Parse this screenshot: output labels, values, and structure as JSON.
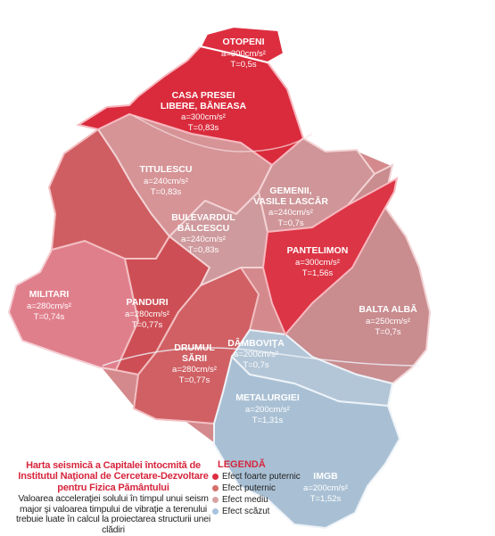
{
  "colors": {
    "very_strong": "#dd2e3f",
    "strong": "#cf5a5c",
    "medium": "#cd9294",
    "low": "#a7bfd3",
    "west": "#e3788a",
    "accent": "#d7263d"
  },
  "zones": [
    {
      "id": "otopeni",
      "name": "OTOPENI",
      "lines": [
        "a=300cm/s²",
        "T=0,5s"
      ],
      "effect": "very_strong"
    },
    {
      "id": "casa-presei",
      "name": "CASA PRESEI",
      "name2": "LIBERE, BĂNEASA",
      "lines": [
        "a=300cm/s²",
        "T=0,83s"
      ],
      "effect": "very_strong"
    },
    {
      "id": "titulescu",
      "name": "TITULESCU",
      "lines": [
        "a=240cm/s²",
        "T=0,83s"
      ],
      "effect": "medium"
    },
    {
      "id": "gemenii",
      "name": "GEMENII,",
      "name2": "VASILE LASCĂR",
      "lines": [
        "a=240cm/s²",
        "T=0,7s"
      ],
      "effect": "medium"
    },
    {
      "id": "balcescu",
      "name": "BULEVARDUL",
      "name2": "BĂLCESCU",
      "lines": [
        "a=240cm/s²",
        "T=0,83s"
      ],
      "effect": "medium"
    },
    {
      "id": "pantelimon",
      "name": "PANTELIMON",
      "lines": [
        "a=300cm/s²",
        "T=1,56s"
      ],
      "effect": "very_strong"
    },
    {
      "id": "militari",
      "name": "MILITARI",
      "lines": [
        "a=280cm/s²",
        "T=0,74s"
      ],
      "effect": "strong"
    },
    {
      "id": "panduri",
      "name": "PANDURI",
      "lines": [
        "a=280cm/s²",
        "T=0,77s"
      ],
      "effect": "strong"
    },
    {
      "id": "balta-alba",
      "name": "BALTA ALBĂ",
      "lines": [
        "a=250cm/s²",
        "T=0,7s"
      ],
      "effect": "medium"
    },
    {
      "id": "drumul-sarii",
      "name": "DRUMUL",
      "name2": "SĂRII",
      "lines": [
        "a=280cm/s²",
        "T=0,77s"
      ],
      "effect": "strong"
    },
    {
      "id": "dambovita",
      "name": "DÂMBOVIŢA",
      "lines": [
        "a=200cm/s²",
        "T=0,7s"
      ],
      "effect": "low"
    },
    {
      "id": "metalurgiei",
      "name": "METALURGIEI",
      "lines": [
        "a=200cm/s²",
        "T=1,31s"
      ],
      "effect": "low"
    },
    {
      "id": "imgb",
      "name": "IMGB",
      "lines": [
        "a=200cm/s²",
        "T=1,52s"
      ],
      "effect": "low"
    }
  ],
  "caption": {
    "title": "Harta seismică a Capitalei întocmită de Institutul Naţional de Cercetare-Dezvoltare pentru Fizica Pământului",
    "body": "Valoarea acceleraţiei solului în timpul unui seism major şi valoarea timpului de vibraţie a terenului trebuie luate în calcul la proiectarea structurii unei clădiri"
  },
  "legend": {
    "title": "LEGENDĂ",
    "items": [
      {
        "label": "Efect foarte puternic",
        "color": "#dd2e3f"
      },
      {
        "label": "Efect puternic",
        "color": "#d4706a"
      },
      {
        "label": "Efect mediu",
        "color": "#d8a2a3"
      },
      {
        "label": "Efect scăzut",
        "color": "#a9c3dc"
      }
    ]
  }
}
